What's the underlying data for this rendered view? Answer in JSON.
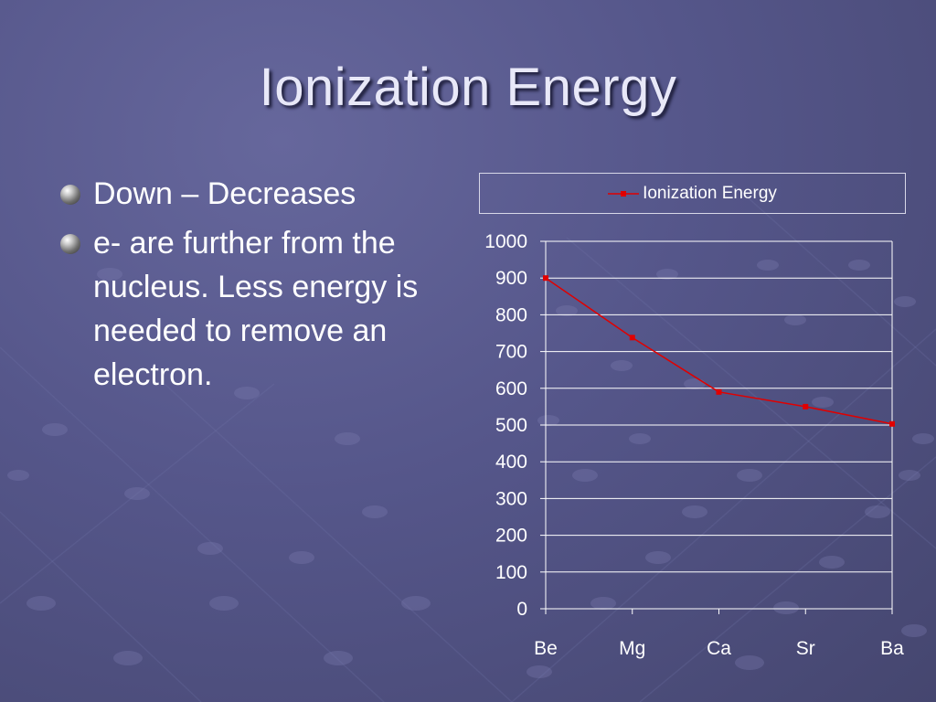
{
  "slide": {
    "title": "Ionization Energy",
    "bullets": [
      "Down – Decreases",
      "e- are further from the nucleus.  Less energy is needed to remove an electron."
    ]
  },
  "colors": {
    "background": "#55568a",
    "series": "#e00000",
    "text": "#ffffff",
    "gridline": "#ffffff"
  },
  "chart_data": {
    "type": "line",
    "categories": [
      "Be",
      "Mg",
      "Ca",
      "Sr",
      "Ba"
    ],
    "series": [
      {
        "name": "Ionization Energy",
        "values": [
          900,
          738,
          590,
          550,
          503
        ]
      }
    ],
    "ylim": [
      0,
      1000
    ],
    "yticks": [
      0,
      100,
      200,
      300,
      400,
      500,
      600,
      700,
      800,
      900,
      1000
    ],
    "grid": true,
    "legend_position": "top"
  }
}
